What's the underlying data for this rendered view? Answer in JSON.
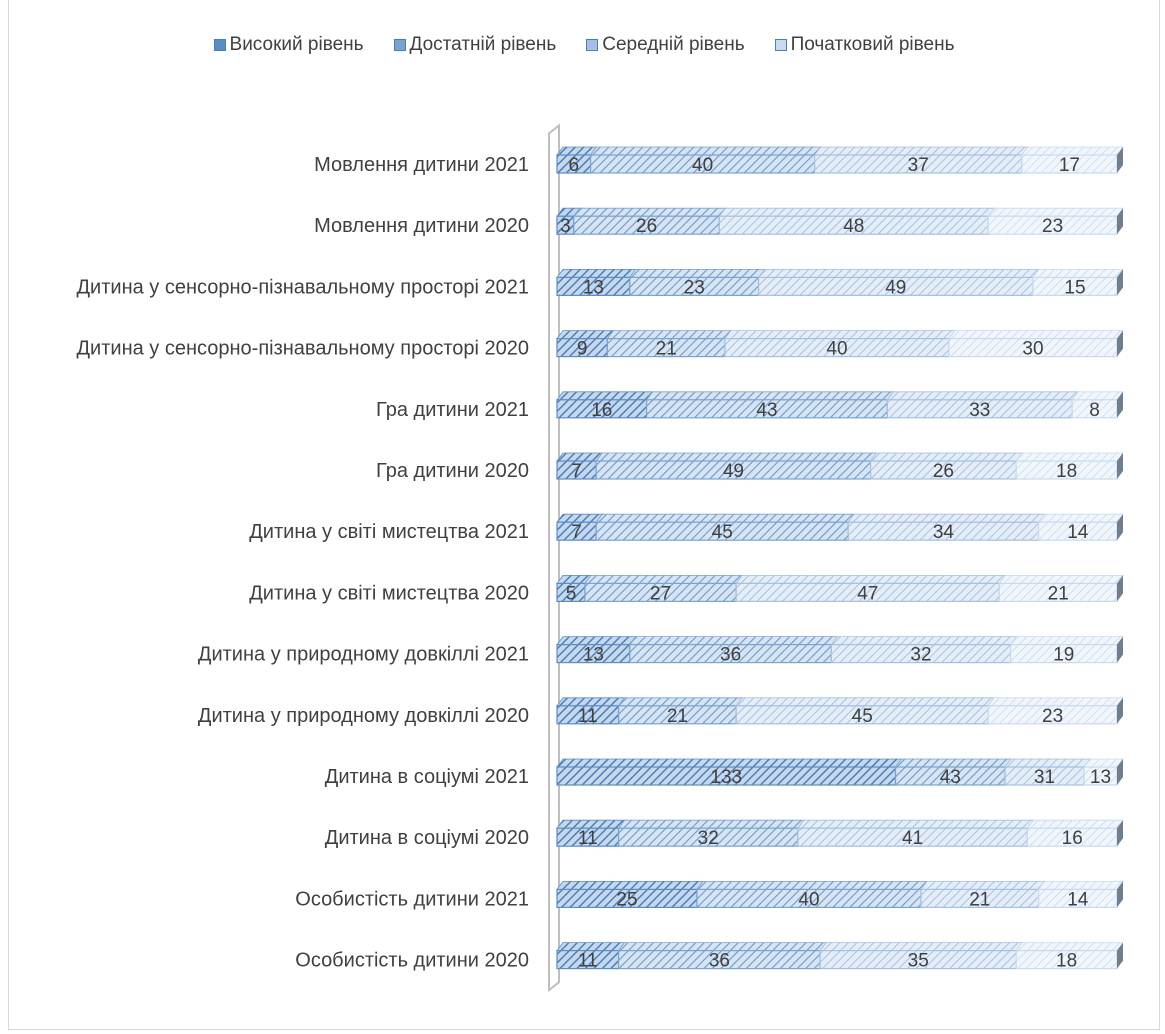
{
  "chart_data": {
    "type": "bar",
    "orientation": "horizontal",
    "stacked": true,
    "stack_mode": "percent",
    "three_d": true,
    "title": "",
    "xlabel": "",
    "ylabel": "",
    "legend_position": "top",
    "grid": false,
    "categories": [
      "Мовлення дитини 2021",
      "Мовлення дитини 2020",
      "Дитина у сенсорно-пізнавальному просторі 2021",
      "Дитина у сенсорно-пізнавальному просторі 2020",
      "Гра дитини 2021",
      "Гра дитини 2020",
      "Дитина у світі мистецтва 2021",
      "Дитина у світі мистецтва 2020",
      "Дитина у природному довкіллі 2021",
      "Дитина у природному довкіллі 2020",
      "Дитина в соціумі 2021",
      "Дитина в соціумі 2020",
      "Особистість дитини 2021",
      "Особистість дитини 2020"
    ],
    "series": [
      {
        "name": "Високий рівень",
        "color": "#5b8cc4",
        "values": [
          6,
          3,
          13,
          9,
          16,
          7,
          7,
          5,
          13,
          11,
          133,
          11,
          25,
          11
        ]
      },
      {
        "name": "Достатній рівень",
        "color": "#7aa3d2",
        "values": [
          40,
          26,
          23,
          21,
          43,
          49,
          45,
          27,
          36,
          21,
          43,
          32,
          40,
          36
        ]
      },
      {
        "name": "Середній рівень",
        "color": "#a4c0e2",
        "values": [
          37,
          48,
          49,
          40,
          33,
          26,
          34,
          47,
          32,
          45,
          31,
          41,
          21,
          35
        ]
      },
      {
        "name": "Початковий рівень",
        "color": "#c9daf0",
        "values": [
          17,
          23,
          15,
          30,
          8,
          18,
          14,
          21,
          19,
          23,
          13,
          16,
          14,
          18
        ]
      }
    ]
  }
}
